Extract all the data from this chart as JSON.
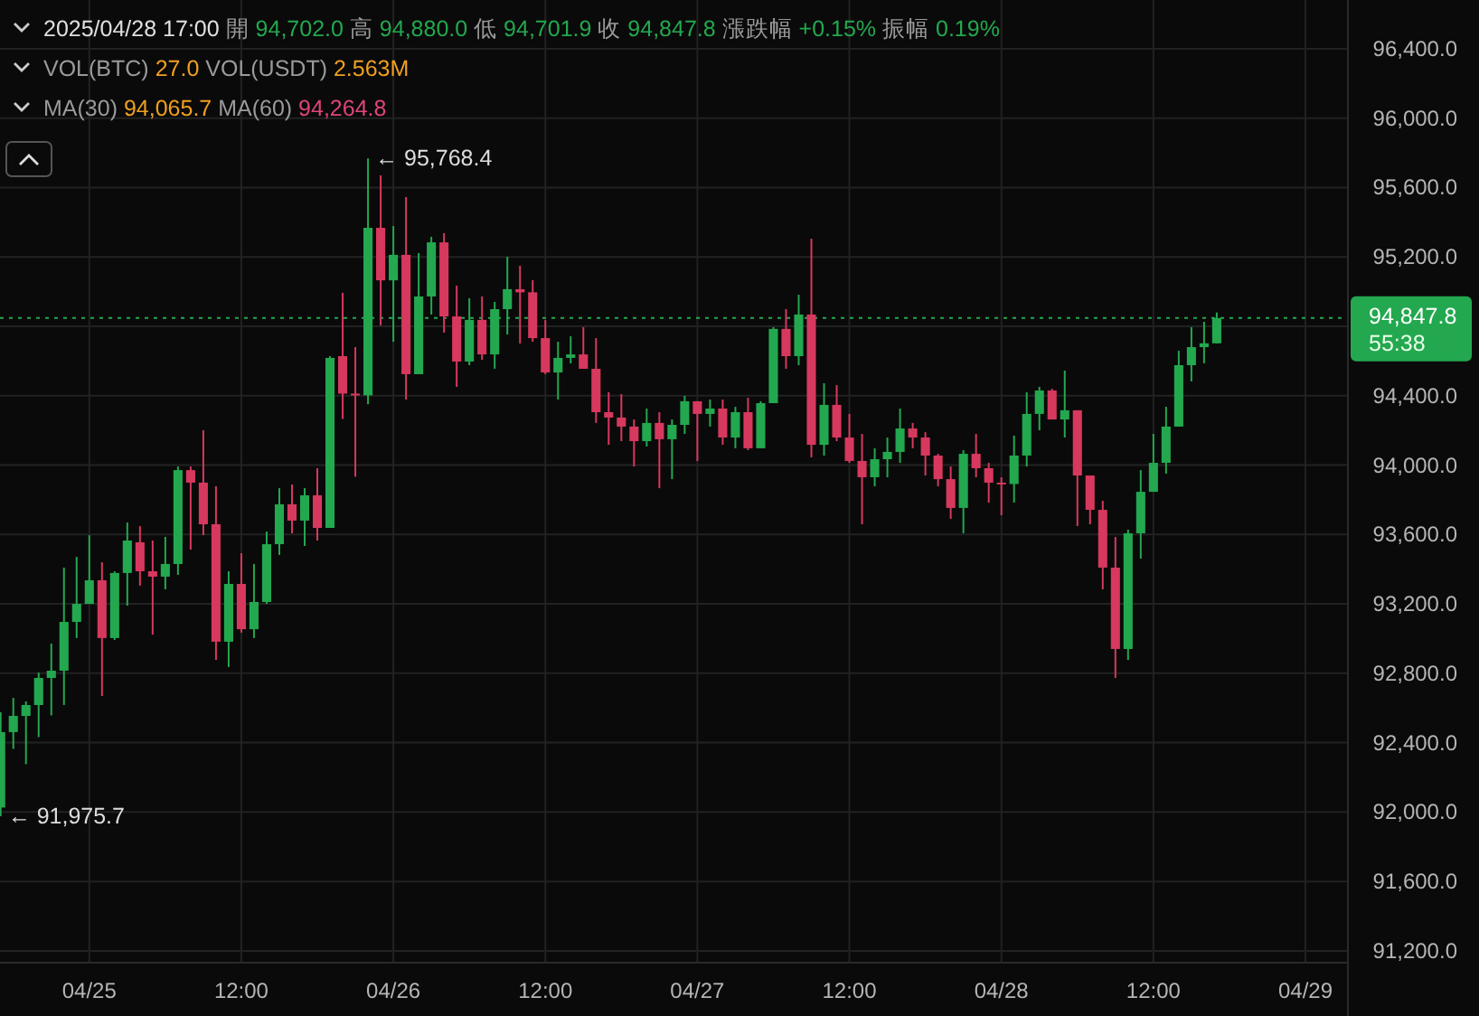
{
  "chart_data": {
    "type": "candlestick",
    "title": "2025/04/28 17:00 開 94,702.0 高 94,880.0 低 94,701.9 收 94,847.8 漲跌幅 +0.15% 振幅 0.19%",
    "subtitle": "VOL(BTC) 27.0 VOL(USDT) 2.563M",
    "annotations": [
      "MA(30) 94,065.7 MA(60) 94,264.8",
      "55:38",
      {
        "text": "← 95,768.4",
        "x": "2025-04-25T22:00",
        "y": 95768.4
      },
      {
        "text": "← 91,975.7",
        "x": "2025-04-24T17:00",
        "y": 91975.7
      }
    ],
    "x": [
      "2025-04-24T17:00",
      "2025-04-24T18:00",
      "2025-04-24T19:00",
      "2025-04-24T20:00",
      "2025-04-24T21:00",
      "2025-04-24T22:00",
      "2025-04-24T23:00",
      "2025-04-25T00:00",
      "2025-04-25T01:00",
      "2025-04-25T02:00",
      "2025-04-25T03:00",
      "2025-04-25T04:00",
      "2025-04-25T05:00",
      "2025-04-25T06:00",
      "2025-04-25T07:00",
      "2025-04-25T08:00",
      "2025-04-25T09:00",
      "2025-04-25T10:00",
      "2025-04-25T11:00",
      "2025-04-25T12:00",
      "2025-04-25T13:00",
      "2025-04-25T14:00",
      "2025-04-25T15:00",
      "2025-04-25T16:00",
      "2025-04-25T17:00",
      "2025-04-25T18:00",
      "2025-04-25T19:00",
      "2025-04-25T20:00",
      "2025-04-25T21:00",
      "2025-04-25T22:00",
      "2025-04-25T23:00",
      "2025-04-26T00:00",
      "2025-04-26T01:00",
      "2025-04-26T02:00",
      "2025-04-26T03:00",
      "2025-04-26T04:00",
      "2025-04-26T05:00",
      "2025-04-26T06:00",
      "2025-04-26T07:00",
      "2025-04-26T08:00",
      "2025-04-26T09:00",
      "2025-04-26T10:00",
      "2025-04-26T11:00",
      "2025-04-26T12:00",
      "2025-04-26T13:00",
      "2025-04-26T14:00",
      "2025-04-26T15:00",
      "2025-04-26T16:00",
      "2025-04-26T17:00",
      "2025-04-26T18:00",
      "2025-04-26T19:00",
      "2025-04-26T20:00",
      "2025-04-26T21:00",
      "2025-04-26T22:00",
      "2025-04-26T23:00",
      "2025-04-27T00:00",
      "2025-04-27T01:00",
      "2025-04-27T02:00",
      "2025-04-27T03:00",
      "2025-04-27T04:00",
      "2025-04-27T05:00",
      "2025-04-27T06:00",
      "2025-04-27T07:00",
      "2025-04-27T08:00",
      "2025-04-27T09:00",
      "2025-04-27T10:00",
      "2025-04-27T11:00",
      "2025-04-27T12:00",
      "2025-04-27T13:00",
      "2025-04-27T14:00",
      "2025-04-27T15:00",
      "2025-04-27T16:00",
      "2025-04-27T17:00",
      "2025-04-27T18:00",
      "2025-04-27T19:00",
      "2025-04-27T20:00",
      "2025-04-27T21:00",
      "2025-04-27T22:00",
      "2025-04-27T23:00",
      "2025-04-28T00:00",
      "2025-04-28T01:00",
      "2025-04-28T02:00",
      "2025-04-28T03:00",
      "2025-04-28T04:00",
      "2025-04-28T05:00",
      "2025-04-28T06:00",
      "2025-04-28T07:00",
      "2025-04-28T08:00",
      "2025-04-28T09:00",
      "2025-04-28T10:00",
      "2025-04-28T11:00",
      "2025-04-28T12:00",
      "2025-04-28T13:00",
      "2025-04-28T14:00",
      "2025-04-28T15:00",
      "2025-04-28T16:00",
      "2025-04-28T17:00"
    ],
    "ohlc": [
      [
        92026,
        92575,
        91975.7,
        92461
      ],
      [
        92461,
        92658,
        92364,
        92554
      ],
      [
        92554,
        92638,
        92276,
        92617
      ],
      [
        92617,
        92804,
        92432,
        92773
      ],
      [
        92773,
        92971,
        92557,
        92815
      ],
      [
        92815,
        93409,
        92617,
        93096
      ],
      [
        93096,
        93471,
        93003,
        93200
      ],
      [
        93200,
        93596,
        93200,
        93336
      ],
      [
        93336,
        93440,
        92669,
        93003
      ],
      [
        93003,
        93388,
        92992,
        93378
      ],
      [
        93378,
        93669,
        93190,
        93565
      ],
      [
        93555,
        93648,
        93305,
        93388
      ],
      [
        93388,
        93565,
        93023,
        93357
      ],
      [
        93357,
        93586,
        93284,
        93430
      ],
      [
        93430,
        93992,
        93367,
        93971
      ],
      [
        93971,
        93992,
        93513,
        93899
      ],
      [
        93899,
        94201,
        93596,
        93659
      ],
      [
        93659,
        93878,
        92877,
        92982
      ],
      [
        92982,
        93388,
        92836,
        93315
      ],
      [
        93315,
        93492,
        93034,
        93054
      ],
      [
        93054,
        93430,
        93003,
        93211
      ],
      [
        93211,
        93617,
        93200,
        93544
      ],
      [
        93544,
        93867,
        93482,
        93774
      ],
      [
        93774,
        93888,
        93607,
        93680
      ],
      [
        93680,
        93867,
        93534,
        93826
      ],
      [
        93826,
        93982,
        93565,
        93638
      ],
      [
        93638,
        94628,
        93638,
        94618
      ],
      [
        94628,
        94993,
        94266,
        94412
      ],
      [
        94412,
        94680,
        93933,
        94402
      ],
      [
        94402,
        95768.4,
        94350,
        95368
      ],
      [
        95368,
        95670,
        94805,
        95065
      ],
      [
        95065,
        95378,
        94711,
        95212
      ],
      [
        95212,
        95545,
        94378,
        94524
      ],
      [
        94524,
        95222,
        94524,
        94972
      ],
      [
        94972,
        95316,
        94868,
        95284
      ],
      [
        95284,
        95337,
        94764,
        94857
      ],
      [
        94857,
        95034,
        94451,
        94597
      ],
      [
        94597,
        94962,
        94576,
        94837
      ],
      [
        94837,
        94972,
        94607,
        94638
      ],
      [
        94638,
        94941,
        94555,
        94899
      ],
      [
        94899,
        95201,
        94753,
        95014
      ],
      [
        95014,
        95149,
        94701,
        94996
      ],
      [
        94996,
        95066,
        94711,
        94732
      ],
      [
        94732,
        94837,
        94524,
        94534
      ],
      [
        94534,
        94711,
        94378,
        94618
      ],
      [
        94618,
        94743,
        94586,
        94638
      ],
      [
        94638,
        94795,
        94555,
        94555
      ],
      [
        94555,
        94732,
        94243,
        94305
      ],
      [
        94305,
        94420,
        94117,
        94274
      ],
      [
        94274,
        94409,
        94138,
        94222
      ],
      [
        94222,
        94263,
        93992,
        94138
      ],
      [
        94138,
        94326,
        94107,
        94243
      ],
      [
        94243,
        94305,
        93867,
        94149
      ],
      [
        94149,
        94263,
        93919,
        94232
      ],
      [
        94232,
        94399,
        94180,
        94368
      ],
      [
        94368,
        94368,
        94024,
        94295
      ],
      [
        94295,
        94378,
        94222,
        94326
      ],
      [
        94326,
        94378,
        94117,
        94159
      ],
      [
        94159,
        94336,
        94097,
        94305
      ],
      [
        94305,
        94388,
        94086,
        94097
      ],
      [
        94097,
        94368,
        94097,
        94357
      ],
      [
        94357,
        94795,
        94357,
        94785
      ],
      [
        94785,
        94899,
        94555,
        94628
      ],
      [
        94628,
        94982,
        94576,
        94868
      ],
      [
        94868,
        95305,
        94045,
        94117
      ],
      [
        94117,
        94472,
        94055,
        94347
      ],
      [
        94347,
        94461,
        94138,
        94159
      ],
      [
        94159,
        94295,
        94013,
        94024
      ],
      [
        94024,
        94180,
        93659,
        93930
      ],
      [
        93930,
        94097,
        93878,
        94034
      ],
      [
        94034,
        94159,
        93930,
        94076
      ],
      [
        94076,
        94326,
        94013,
        94211
      ],
      [
        94211,
        94243,
        94097,
        94159
      ],
      [
        94159,
        94190,
        93940,
        94055
      ],
      [
        94055,
        94065,
        93878,
        93919
      ],
      [
        93919,
        93992,
        93690,
        93753
      ],
      [
        93753,
        94086,
        93607,
        94065
      ],
      [
        94065,
        94180,
        93930,
        93982
      ],
      [
        93982,
        94013,
        93784,
        93899
      ],
      [
        93899,
        93930,
        93711,
        93891
      ],
      [
        93891,
        94170,
        93784,
        94055
      ],
      [
        94055,
        94420,
        93992,
        94295
      ],
      [
        94295,
        94451,
        94201,
        94430
      ],
      [
        94430,
        94440,
        94263,
        94263
      ],
      [
        94263,
        94545,
        94159,
        94316
      ],
      [
        94316,
        94316,
        93649,
        93940
      ],
      [
        93940,
        93940,
        93659,
        93742
      ],
      [
        93742,
        93794,
        93284,
        93409
      ],
      [
        93409,
        93586,
        92773,
        92940
      ],
      [
        92940,
        93628,
        92877,
        93607
      ],
      [
        93607,
        93971,
        93461,
        93846
      ],
      [
        93846,
        94180,
        93846,
        94013
      ],
      [
        94013,
        94336,
        93951,
        94222
      ],
      [
        94222,
        94659,
        94222,
        94576
      ],
      [
        94576,
        94795,
        94482,
        94680
      ],
      [
        94680,
        94826,
        94587,
        94702
      ],
      [
        94702.0,
        94880.0,
        94701.9,
        94847.8
      ]
    ],
    "colors": [
      "#23a84f",
      "#23a84f",
      "#23a84f",
      "#23a84f",
      "#23a84f",
      "#23a84f",
      "#23a84f",
      "#23a84f",
      "#d7385e",
      "#23a84f",
      "#23a84f",
      "#d7385e",
      "#d7385e",
      "#23a84f",
      "#23a84f",
      "#d7385e",
      "#d7385e",
      "#d7385e",
      "#23a84f",
      "#d7385e",
      "#23a84f",
      "#23a84f",
      "#23a84f",
      "#d7385e",
      "#23a84f",
      "#d7385e",
      "#23a84f",
      "#d7385e",
      "#d7385e",
      "#23a84f",
      "#d7385e",
      "#23a84f",
      "#d7385e",
      "#23a84f",
      "#23a84f",
      "#d7385e",
      "#d7385e",
      "#23a84f",
      "#d7385e",
      "#23a84f",
      "#23a84f",
      "#d7385e",
      "#d7385e",
      "#d7385e",
      "#23a84f",
      "#23a84f",
      "#d7385e",
      "#d7385e",
      "#d7385e",
      "#d7385e",
      "#d7385e",
      "#23a84f",
      "#d7385e",
      "#23a84f",
      "#23a84f",
      "#d7385e",
      "#23a84f",
      "#d7385e",
      "#23a84f",
      "#d7385e",
      "#23a84f",
      "#23a84f",
      "#d7385e",
      "#23a84f",
      "#d7385e",
      "#23a84f",
      "#d7385e",
      "#d7385e",
      "#d7385e",
      "#23a84f",
      "#23a84f",
      "#23a84f",
      "#d7385e",
      "#d7385e",
      "#d7385e",
      "#d7385e",
      "#23a84f",
      "#d7385e",
      "#d7385e",
      "#d7385e",
      "#23a84f",
      "#23a84f",
      "#23a84f",
      "#d7385e",
      "#23a84f",
      "#d7385e",
      "#d7385e",
      "#d7385e",
      "#d7385e",
      "#23a84f",
      "#23a84f",
      "#23a84f",
      "#23a84f",
      "#23a84f",
      "#23a84f",
      "#23a84f",
      "#23a84f"
    ],
    "xlim": [
      "2025-04-24T16:57",
      "2025-04-29T03:17"
    ],
    "xticks": [
      {
        "value": "2025-04-25T00:00",
        "label": "04/25"
      },
      {
        "value": "2025-04-25T12:00",
        "label": "12:00"
      },
      {
        "value": "2025-04-26T00:00",
        "label": "04/26"
      },
      {
        "value": "2025-04-26T12:00",
        "label": "12:00"
      },
      {
        "value": "2025-04-27T00:00",
        "label": "04/27"
      },
      {
        "value": "2025-04-27T12:00",
        "label": "12:00"
      },
      {
        "value": "2025-04-28T00:00",
        "label": "04/28"
      },
      {
        "value": "2025-04-28T12:00",
        "label": "12:00"
      },
      {
        "value": "2025-04-29T00:00",
        "label": "04/29"
      }
    ],
    "ylim": [
      91137,
      96681
    ],
    "yticks": [
      {
        "value": 91200,
        "label": "91,200.0"
      },
      {
        "value": 91600,
        "label": "91,600.0"
      },
      {
        "value": 92000,
        "label": "92,000.0"
      },
      {
        "value": 92400,
        "label": "92,400.0"
      },
      {
        "value": 92800,
        "label": "92,800.0"
      },
      {
        "value": 93200,
        "label": "93,200.0"
      },
      {
        "value": 93600,
        "label": "93,600.0"
      },
      {
        "value": 94000,
        "label": "94,000.0"
      },
      {
        "value": 94400,
        "label": "94,400.0"
      },
      {
        "value": 94800,
        "label": null
      },
      {
        "value": 95200,
        "label": "95,200.0"
      },
      {
        "value": 95600,
        "label": "95,600.0"
      },
      {
        "value": 96000,
        "label": "96,000.0"
      },
      {
        "value": 96400,
        "label": "96,400.0"
      }
    ],
    "ref_lines": [
      {
        "axis": "y",
        "value": 94847.8,
        "label": "94,847.8",
        "color": "#23a84f",
        "line_style": "dotted"
      }
    ],
    "grid": true
  }
}
